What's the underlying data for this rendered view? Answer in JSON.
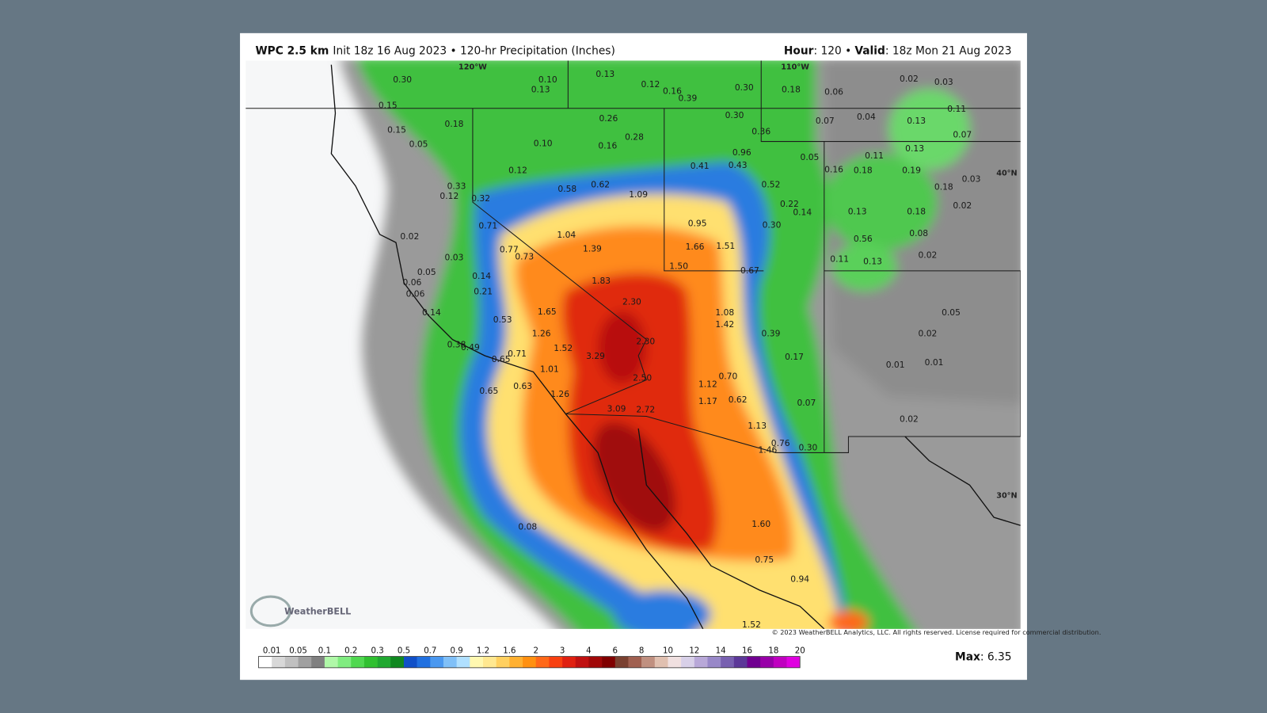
{
  "header": {
    "model": "WPC 2.5 km",
    "description": "Init 18z 16 Aug 2023 • 120-hr Precipitation (Inches)",
    "hour_label": "Hour",
    "hour_text": ": 120 •",
    "valid_label": "Valid",
    "valid_text": ": 18z Mon 21 Aug 2023"
  },
  "map": {
    "grid_labels": [
      "120°W",
      "110°W",
      "40°N",
      "30°N"
    ],
    "value_labels": [
      "0.30",
      "0.10",
      "0.13",
      "0.13",
      "0.12",
      "0.16",
      "0.39",
      "0.30",
      "0.18",
      "0.06",
      "0.02",
      "0.03",
      "0.15",
      "0.18",
      "0.26",
      "0.30",
      "0.36",
      "0.07",
      "0.04",
      "0.13",
      "0.11",
      "0.07",
      "0.15",
      "0.05",
      "0.10",
      "0.16",
      "0.28",
      "0.96",
      "0.05",
      "0.11",
      "0.13",
      "0.12",
      "0.41",
      "0.43",
      "0.16",
      "0.18",
      "0.19",
      "0.03",
      "0.33",
      "0.58",
      "0.62",
      "1.09",
      "0.52",
      "0.18",
      "0.12",
      "0.32",
      "0.22",
      "0.14",
      "0.13",
      "0.18",
      "0.02",
      "0.71",
      "0.95",
      "0.30",
      "1.04",
      "0.56",
      "0.08",
      "0.02",
      "0.77",
      "1.39",
      "1.66",
      "1.51",
      "0.73",
      "0.03",
      "0.11",
      "0.13",
      "0.02",
      "1.50",
      "0.67",
      "0.05",
      "0.14",
      "1.83",
      "0.06",
      "0.06",
      "0.21",
      "2.30",
      "1.65",
      "1.08",
      "0.14",
      "0.05",
      "0.53",
      "1.42",
      "1.26",
      "0.39",
      "0.02",
      "0.38",
      "0.49",
      "2.30",
      "1.52",
      "0.71",
      "3.29",
      "0.65",
      "0.17",
      "1.01",
      "2.50",
      "0.70",
      "0.01",
      "0.01",
      "0.63",
      "1.12",
      "0.65",
      "1.26",
      "1.17",
      "0.62",
      "0.07",
      "3.09",
      "2.72",
      "0.02",
      "1.13",
      "0.76",
      "0.30",
      "1.46",
      "1.60",
      "0.08",
      "0.75",
      "0.94",
      "1.52"
    ],
    "copyright": "© 2023 WeatherBELL Analytics, LLC. All rights reserved. License required for commercial distribution.",
    "logo": "WeatherBELL"
  },
  "legend": {
    "ticks": [
      0.01,
      0.05,
      0.1,
      0.2,
      0.3,
      0.5,
      0.7,
      0.9,
      1.2,
      1.6,
      2,
      3,
      4,
      6,
      8,
      10,
      12,
      14,
      16,
      18,
      20
    ],
    "colors": [
      "#ffffff",
      "#d8d8d8",
      "#c0c0c0",
      "#a0a0a0",
      "#808080",
      "#b0f8a8",
      "#80ec80",
      "#50d850",
      "#30c030",
      "#20a830",
      "#108820",
      "#1050c8",
      "#2070e0",
      "#4a98f0",
      "#80c0f8",
      "#b0e0ff",
      "#fff8b0",
      "#ffe890",
      "#ffd060",
      "#ffb030",
      "#ff9010",
      "#ff6818",
      "#f84010",
      "#e02010",
      "#c01010",
      "#a00808",
      "#800000",
      "#7a4030",
      "#a06050",
      "#c09080",
      "#e0c0b0",
      "#f0e0e0",
      "#d8d0e8",
      "#b8a8d8",
      "#9888c8",
      "#7860b0",
      "#5c3898",
      "#700090",
      "#9800a8",
      "#c000c0",
      "#e000e0"
    ],
    "max_label": "Max",
    "max_text": ": 6.35"
  }
}
